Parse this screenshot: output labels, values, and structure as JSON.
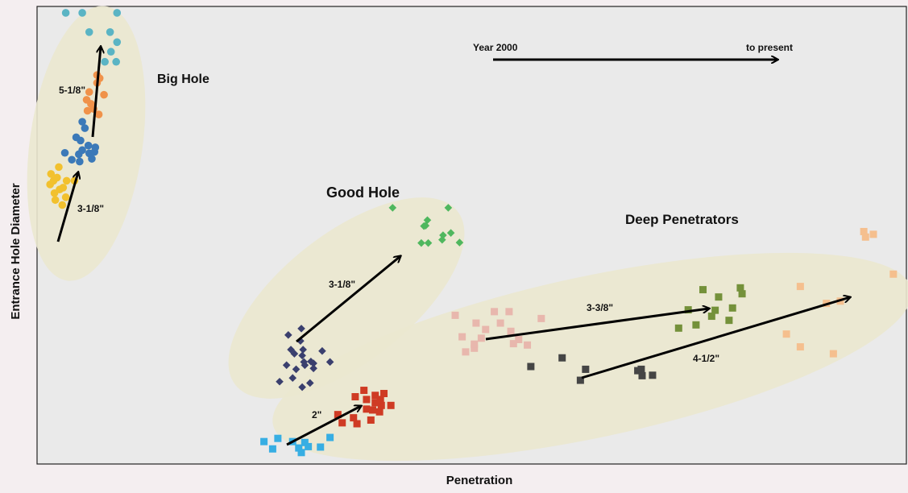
{
  "chart_data": {
    "type": "scatter",
    "title": "",
    "xlabel": "Penetration",
    "ylabel": "Entrance Hole Diameter",
    "grid": false,
    "legend": "none",
    "xlim": [
      0,
      100
    ],
    "ylim": [
      0,
      100
    ],
    "timeline": {
      "start_label": "Year 2000",
      "end_label": "to present"
    },
    "groups": [
      {
        "label": "Big Hole",
        "color": "#ebe8cf"
      },
      {
        "label": "Good Hole",
        "color": "#ebe8cf"
      },
      {
        "label": "Deep Penetrators",
        "color": "#ebe8cf"
      }
    ],
    "arrow_labels": [
      "5-1/8\"",
      "3-1/8\"",
      "3-1/8\"",
      "2\"",
      "3-3/8\"",
      "4-1/2\""
    ],
    "series": [
      {
        "marker": "circle",
        "color": "#f2c12e",
        "points": [
          [
            2.1,
            57.7
          ],
          [
            2.0,
            59.2
          ],
          [
            2.6,
            60.0
          ],
          [
            1.5,
            61.1
          ],
          [
            1.9,
            61.9
          ],
          [
            2.3,
            62.6
          ],
          [
            1.6,
            63.4
          ],
          [
            2.5,
            64.9
          ],
          [
            4.3,
            61.9
          ],
          [
            3.4,
            61.9
          ],
          [
            3.0,
            60.4
          ],
          [
            3.3,
            58.3
          ],
          [
            2.9,
            56.6
          ]
        ]
      },
      {
        "marker": "circle",
        "color": "#3b79b8",
        "points": [
          [
            3.2,
            68.0
          ],
          [
            4.8,
            67.7
          ],
          [
            5.2,
            68.6
          ],
          [
            5.0,
            70.7
          ],
          [
            4.5,
            71.4
          ],
          [
            5.9,
            69.6
          ],
          [
            6.6,
            68.2
          ],
          [
            4.9,
            66.1
          ],
          [
            6.3,
            66.7
          ],
          [
            4.0,
            66.5
          ],
          [
            5.5,
            73.4
          ],
          [
            5.2,
            74.8
          ],
          [
            6.7,
            69.2
          ],
          [
            6.0,
            67.9
          ]
        ]
      },
      {
        "marker": "circle",
        "color": "#f0924a",
        "points": [
          [
            6.9,
            85.0
          ],
          [
            7.2,
            84.3
          ],
          [
            6.9,
            83.3
          ],
          [
            6.0,
            81.3
          ],
          [
            5.7,
            79.6
          ],
          [
            6.5,
            77.6
          ],
          [
            5.8,
            77.2
          ],
          [
            7.1,
            76.4
          ],
          [
            6.2,
            78.7
          ],
          [
            7.7,
            80.7
          ]
        ]
      },
      {
        "marker": "circle",
        "color": "#5ab4c4",
        "points": [
          [
            3.3,
            98.6
          ],
          [
            5.2,
            98.6
          ],
          [
            9.2,
            98.6
          ],
          [
            6.0,
            94.4
          ],
          [
            8.4,
            94.4
          ],
          [
            9.2,
            92.2
          ],
          [
            8.5,
            90.1
          ],
          [
            9.1,
            87.9
          ],
          [
            7.8,
            87.9
          ]
        ]
      },
      {
        "marker": "diamond",
        "color": "#3a3f6e",
        "points": [
          [
            30.4,
            29.6
          ],
          [
            29.2,
            25.0
          ],
          [
            31.8,
            22.0
          ],
          [
            29.6,
            24.1
          ],
          [
            30.7,
            22.3
          ],
          [
            30.8,
            21.6
          ],
          [
            29.4,
            18.8
          ],
          [
            31.4,
            17.7
          ],
          [
            30.5,
            16.8
          ],
          [
            28.7,
            21.6
          ],
          [
            32.8,
            24.7
          ],
          [
            31.5,
            22.4
          ],
          [
            31.8,
            20.9
          ],
          [
            30.6,
            25.0
          ],
          [
            29.8,
            20.7
          ],
          [
            30.5,
            23.7
          ],
          [
            27.9,
            18.0
          ],
          [
            33.7,
            22.3
          ],
          [
            30.3,
            26.9
          ],
          [
            28.9,
            28.2
          ]
        ]
      },
      {
        "marker": "diamond",
        "color": "#4fb75e",
        "points": [
          [
            40.9,
            56.0
          ],
          [
            44.9,
            53.3
          ],
          [
            46.6,
            49.0
          ],
          [
            45.0,
            48.3
          ],
          [
            48.6,
            48.4
          ],
          [
            44.5,
            52.0
          ],
          [
            47.3,
            56.0
          ],
          [
            44.7,
            52.1
          ],
          [
            46.7,
            50.0
          ],
          [
            47.6,
            50.5
          ],
          [
            44.2,
            48.3
          ]
        ]
      },
      {
        "marker": "square",
        "color": "#e8b7ad",
        "points": [
          [
            48.1,
            32.5
          ],
          [
            50.5,
            30.8
          ],
          [
            52.6,
            33.3
          ],
          [
            54.3,
            33.3
          ],
          [
            53.3,
            30.8
          ],
          [
            54.5,
            29.0
          ],
          [
            55.4,
            27.2
          ],
          [
            54.8,
            26.3
          ],
          [
            51.6,
            29.4
          ],
          [
            51.1,
            27.5
          ],
          [
            50.3,
            25.3
          ],
          [
            49.3,
            24.5
          ],
          [
            58.0,
            31.8
          ],
          [
            48.9,
            27.8
          ],
          [
            50.3,
            26.2
          ],
          [
            56.4,
            26.0
          ]
        ]
      },
      {
        "marker": "square",
        "color": "#454545",
        "points": [
          [
            56.8,
            21.3
          ],
          [
            60.4,
            23.2
          ],
          [
            63.1,
            20.7
          ],
          [
            62.5,
            18.3
          ],
          [
            69.5,
            20.7
          ],
          [
            69.1,
            20.4
          ],
          [
            69.6,
            19.3
          ],
          [
            70.8,
            19.4
          ]
        ]
      },
      {
        "marker": "square",
        "color": "#74913a",
        "points": [
          [
            76.6,
            38.1
          ],
          [
            78.4,
            36.5
          ],
          [
            78.0,
            33.6
          ],
          [
            74.9,
            33.7
          ],
          [
            77.6,
            32.3
          ],
          [
            80.0,
            34.1
          ],
          [
            75.8,
            30.4
          ],
          [
            79.6,
            31.4
          ],
          [
            73.8,
            29.7
          ],
          [
            80.9,
            38.5
          ],
          [
            81.1,
            37.2
          ]
        ]
      },
      {
        "marker": "square",
        "color": "#f5bf8e",
        "points": [
          [
            95.1,
            50.8
          ],
          [
            96.2,
            50.2
          ],
          [
            95.3,
            49.6
          ],
          [
            98.5,
            41.5
          ],
          [
            87.8,
            38.8
          ],
          [
            92.4,
            35.6
          ],
          [
            86.2,
            28.4
          ],
          [
            87.8,
            25.6
          ],
          [
            91.6,
            24.1
          ],
          [
            90.8,
            35.1
          ]
        ]
      },
      {
        "marker": "square",
        "color": "#cf3b24",
        "points": [
          [
            37.6,
            16.1
          ],
          [
            38.9,
            15.0
          ],
          [
            39.4,
            11.4
          ],
          [
            38.4,
            9.6
          ],
          [
            36.4,
            10.1
          ],
          [
            39.6,
            12.8
          ],
          [
            38.9,
            13.4
          ],
          [
            40.7,
            12.8
          ],
          [
            37.9,
            12.0
          ],
          [
            36.8,
            8.8
          ],
          [
            35.1,
            9.0
          ],
          [
            34.6,
            10.8
          ],
          [
            38.6,
            11.8
          ],
          [
            39.5,
            14.1
          ],
          [
            39.9,
            15.4
          ],
          [
            36.6,
            14.7
          ],
          [
            37.9,
            14.1
          ]
        ]
      },
      {
        "marker": "square",
        "color": "#37aee3",
        "points": [
          [
            26.1,
            4.9
          ],
          [
            27.1,
            3.3
          ],
          [
            27.7,
            5.6
          ],
          [
            29.4,
            4.9
          ],
          [
            30.4,
            2.5
          ],
          [
            31.2,
            3.8
          ],
          [
            30.8,
            4.7
          ],
          [
            30.1,
            3.5
          ],
          [
            32.6,
            3.7
          ],
          [
            33.7,
            5.8
          ]
        ]
      }
    ]
  }
}
